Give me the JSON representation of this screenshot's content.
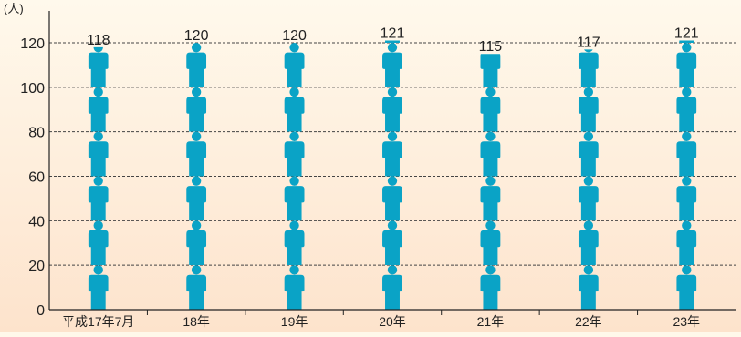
{
  "chart_data": {
    "type": "bar",
    "title": "",
    "xlabel": "",
    "ylabel": "(人)",
    "categories": [
      "平成17年7月",
      "18年",
      "19年",
      "20年",
      "21年",
      "22年",
      "23年"
    ],
    "values": [
      118,
      120,
      120,
      121,
      115,
      117,
      121
    ],
    "ylim": [
      0,
      120
    ],
    "yticks": [
      0,
      20,
      40,
      60,
      80,
      100,
      120
    ],
    "grid": true,
    "legend": "none"
  },
  "colors": {
    "figure": "#0aa3c6",
    "grid": "#444444",
    "axis": "#222222",
    "text": "#222222",
    "background_top": "#fff9ec",
    "background_bottom": "#fde3cc"
  }
}
